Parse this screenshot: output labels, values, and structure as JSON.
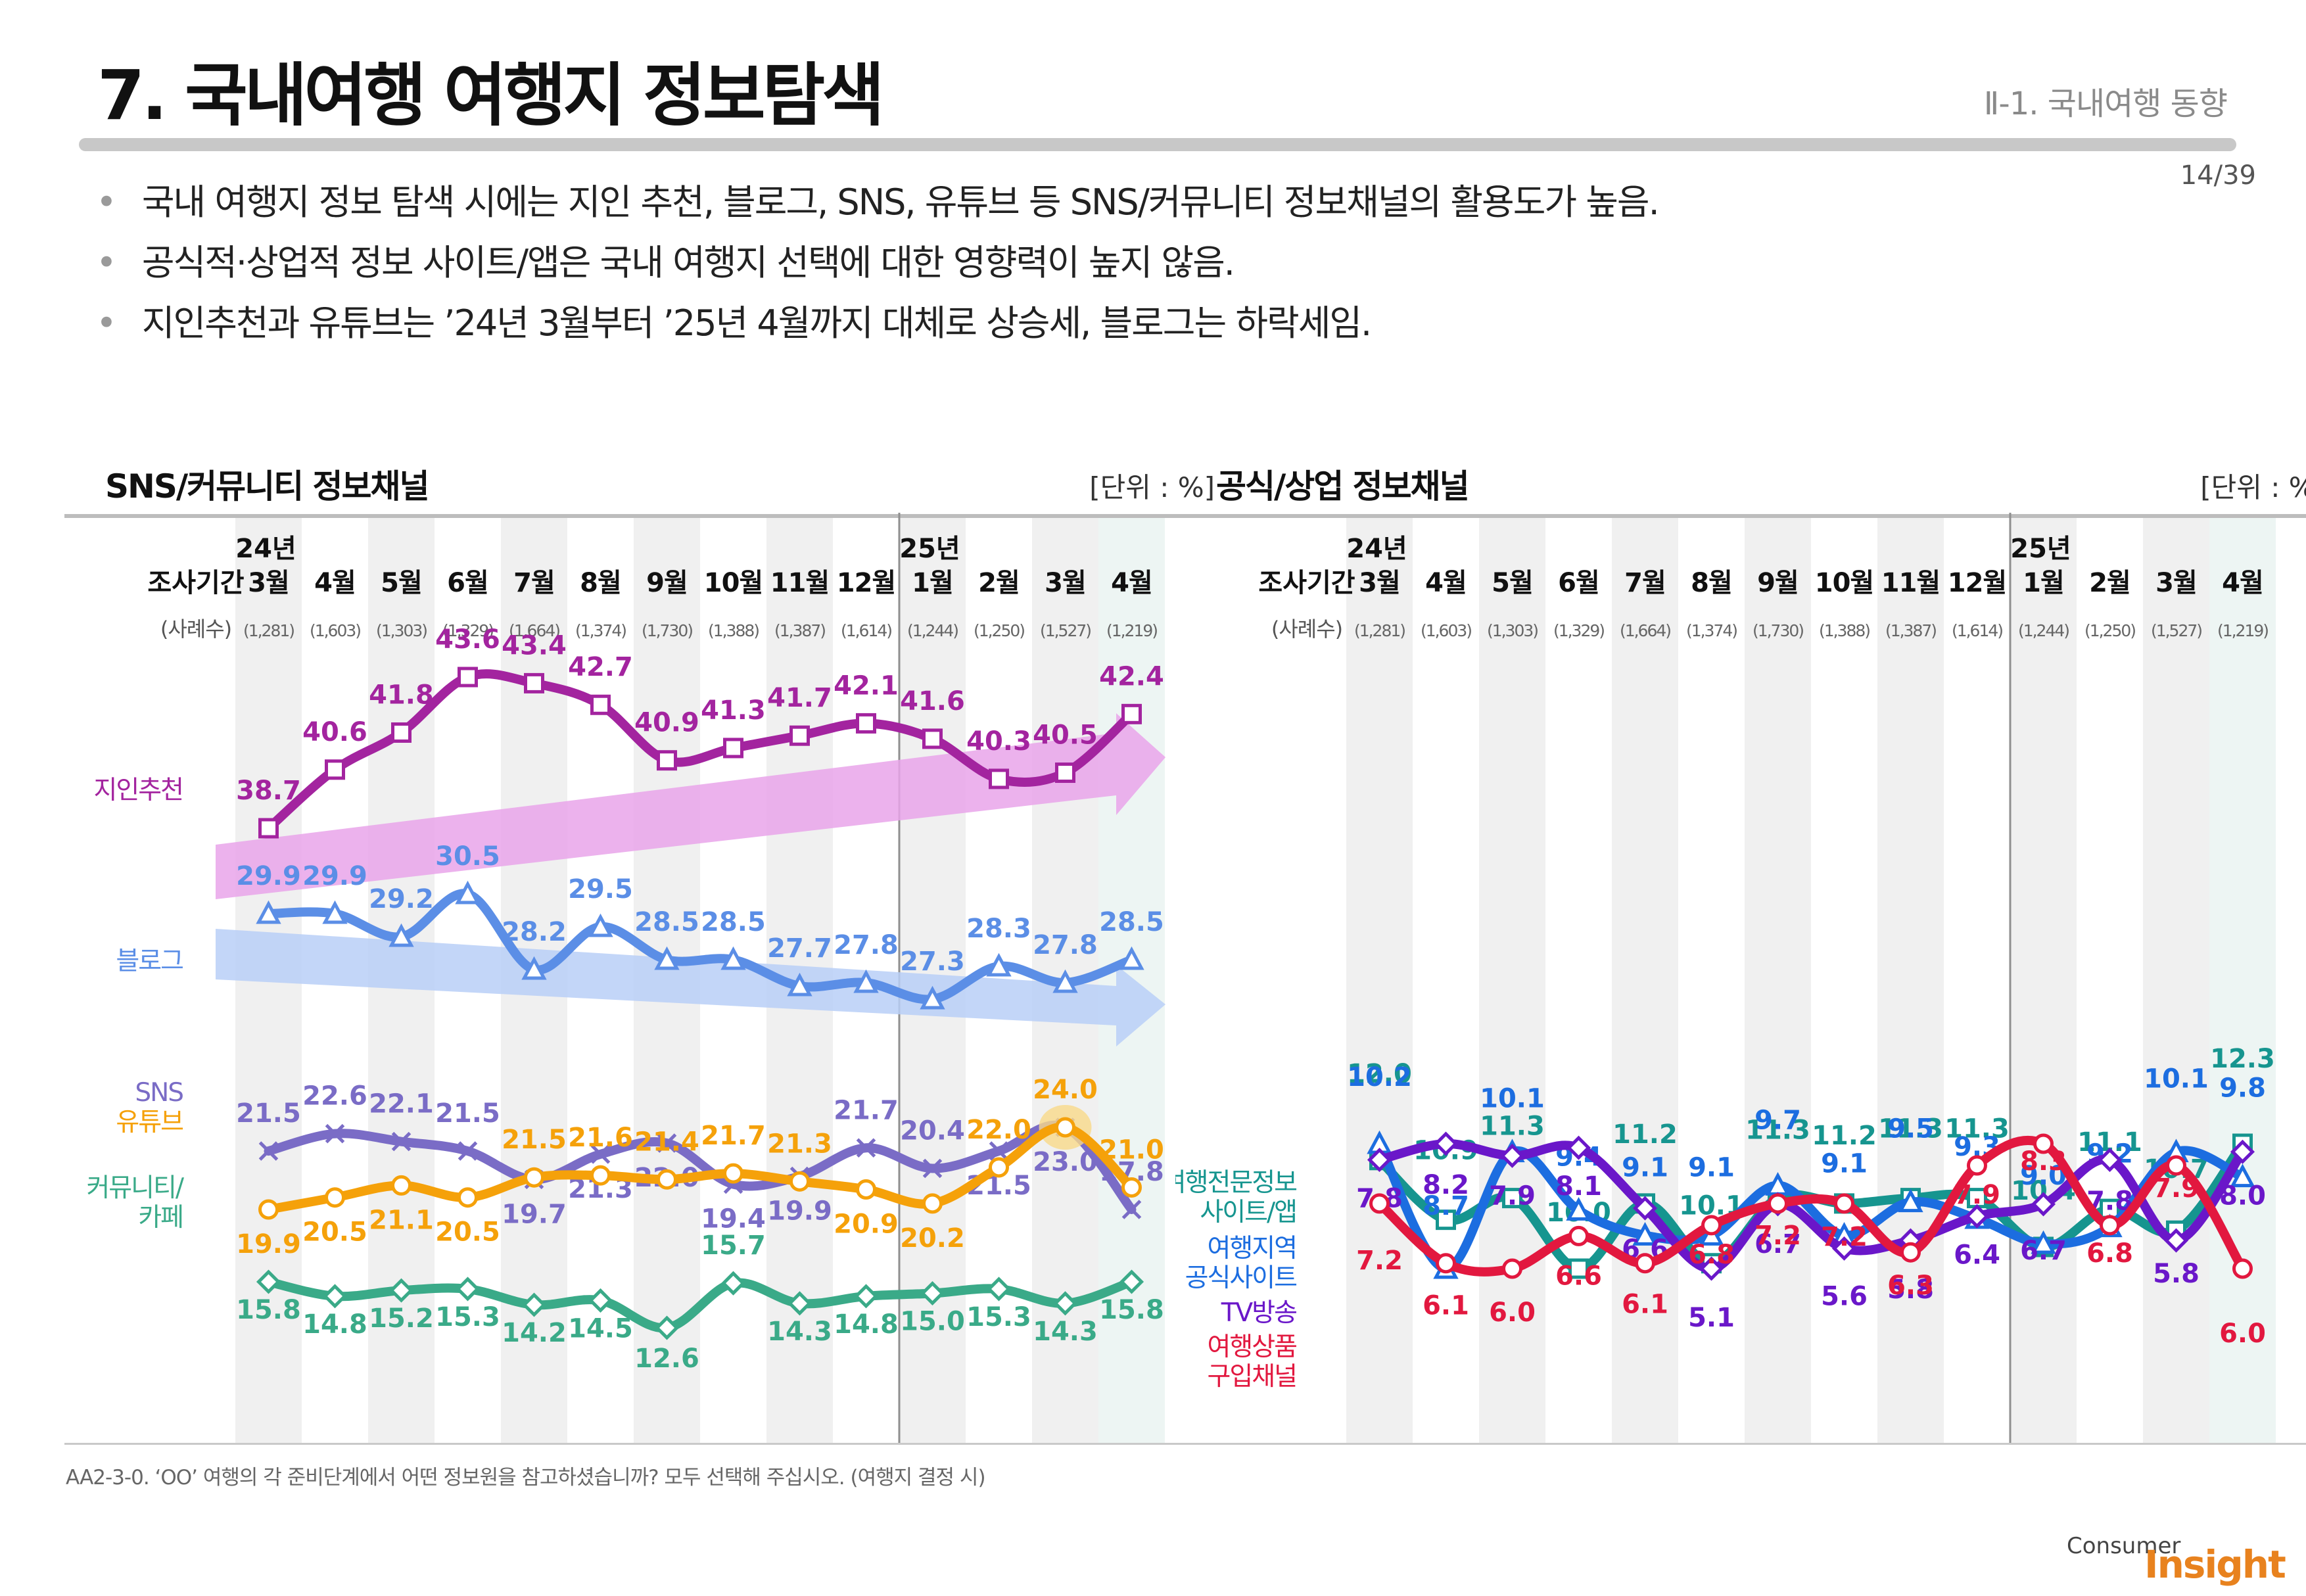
{
  "title": "7. 국내여행 여행지 정보탐색",
  "section_ref": "Ⅱ-1. 국내여행 동향",
  "page_number": "14/39",
  "bullets": [
    "국내 여행지 정보 탐색 시에는 지인 추천, 블로그, SNS, 유튜브 등 SNS/커뮤니티 정보채널의 활용도가 높음.",
    "공식적·상업적 정보 사이트/앱은 국내 여행지 선택에 대한 영향력이 높지 않음.",
    "지인추천과 유튜브는 ’24년 3월부터 ’25년 4월까지 대체로 상승세, 블로그는 하락세임."
  ],
  "bullet_marker": "•",
  "footnote": "AA2-3-0. ‘OO’ 여행의 각 준비단계에서 어떤 정보원을 참고하셨습니까? 모두 선택해 주십시오. (여행지 결정 시)",
  "logo": {
    "small": "Consumer",
    "big": "Insight"
  },
  "colors": {
    "purple": "#a3249f",
    "blue": "#5b8ee6",
    "slate": "#7a6cc6",
    "orange": "#f5a10a",
    "green": "#3aaa88",
    "teal": "#16958f",
    "royal": "#1c6de0",
    "violet": "#6a17c9",
    "red": "#e2183f"
  },
  "chart_data": [
    {
      "type": "line",
      "title": "SNS/커뮤니티 정보채널",
      "unit_label": "[단위 : %]",
      "period_label": "조사기간",
      "n_label": "(사례수)",
      "year_labels": [
        {
          "index": 0,
          "text": "24년"
        },
        {
          "index": 10,
          "text": "25년"
        }
      ],
      "categories": [
        "3월",
        "4월",
        "5월",
        "6월",
        "7월",
        "8월",
        "9월",
        "10월",
        "11월",
        "12월",
        "1월",
        "2월",
        "3월",
        "4월"
      ],
      "sample_sizes": [
        "(1,281)",
        "(1,603)",
        "(1,303)",
        "(1,329)",
        "(1,664)",
        "(1,374)",
        "(1,730)",
        "(1,388)",
        "(1,387)",
        "(1,614)",
        "(1,244)",
        "(1,250)",
        "(1,527)",
        "(1,219)"
      ],
      "ylim": [
        0,
        50
      ],
      "series": [
        {
          "name": "지인추천",
          "color": "#a3249f",
          "marker": "square",
          "trend_arrow": "up",
          "arrow_color": "#e9a5ea",
          "values": [
            38.7,
            40.6,
            41.8,
            43.6,
            43.4,
            42.7,
            40.9,
            41.3,
            41.7,
            42.1,
            41.6,
            40.3,
            40.5,
            42.4
          ]
        },
        {
          "name": "블로그",
          "color": "#5b8ee6",
          "marker": "triangle",
          "trend_arrow": "down",
          "arrow_color": "#b9cff7",
          "values": [
            29.9,
            29.9,
            29.2,
            30.5,
            28.2,
            29.5,
            28.5,
            28.5,
            27.7,
            27.8,
            27.3,
            28.3,
            27.8,
            28.5
          ]
        },
        {
          "name": "SNS",
          "color": "#7a6cc6",
          "marker": "x",
          "values": [
            21.5,
            22.6,
            22.1,
            21.5,
            19.7,
            21.3,
            22.0,
            19.4,
            19.9,
            21.7,
            20.4,
            21.5,
            23.0,
            17.8
          ]
        },
        {
          "name": "유튜브",
          "color": "#f5a10a",
          "marker": "circle",
          "highlight_index": 12,
          "values": [
            19.9,
            20.5,
            21.1,
            20.5,
            21.5,
            21.6,
            21.4,
            21.7,
            21.3,
            20.9,
            20.2,
            22.0,
            24.0,
            21.0
          ]
        },
        {
          "name": "커뮤니티/카페",
          "color": "#3aaa88",
          "marker": "diamond",
          "values": [
            15.8,
            14.8,
            15.2,
            15.3,
            14.2,
            14.5,
            12.6,
            15.7,
            14.3,
            14.8,
            15.0,
            15.3,
            14.3,
            15.8
          ]
        }
      ]
    },
    {
      "type": "line",
      "title": "공식/상업 정보채널",
      "unit_label": "[단위 : %]",
      "period_label": "조사기간",
      "n_label": "(사례수)",
      "year_labels": [
        {
          "index": 0,
          "text": "24년"
        },
        {
          "index": 10,
          "text": "25년"
        }
      ],
      "categories": [
        "3월",
        "4월",
        "5월",
        "6월",
        "7월",
        "8월",
        "9월",
        "10월",
        "11월",
        "12월",
        "1월",
        "2월",
        "3월",
        "4월"
      ],
      "sample_sizes": [
        "(1,281)",
        "(1,603)",
        "(1,303)",
        "(1,329)",
        "(1,664)",
        "(1,374)",
        "(1,730)",
        "(1,388)",
        "(1,387)",
        "(1,614)",
        "(1,244)",
        "(1,250)",
        "(1,527)",
        "(1,219)"
      ],
      "ylim": [
        0,
        50
      ],
      "series": [
        {
          "name": "여행전문정보 사이트/앱",
          "color": "#16958f",
          "marker": "square",
          "values": [
            12.0,
            10.9,
            11.3,
            10.0,
            11.2,
            10.1,
            11.3,
            11.2,
            11.3,
            11.3,
            10.4,
            11.1,
            10.7,
            12.3
          ]
        },
        {
          "name": "여행지역 공식사이트",
          "color": "#1c6de0",
          "marker": "triangle",
          "values": [
            10.2,
            8.7,
            10.1,
            9.4,
            9.1,
            9.1,
            9.7,
            9.1,
            9.5,
            9.3,
            9.0,
            9.2,
            10.1,
            9.8
          ]
        },
        {
          "name": "TV방송",
          "color": "#6a17c9",
          "marker": "diamond",
          "values": [
            7.8,
            8.2,
            7.9,
            8.1,
            6.6,
            5.1,
            6.7,
            5.6,
            5.8,
            6.4,
            6.7,
            7.8,
            5.8,
            8.0
          ]
        },
        {
          "name": "여행상품 구입채널",
          "color": "#e2183f",
          "marker": "circle",
          "values": [
            7.2,
            6.1,
            6.0,
            6.6,
            6.1,
            6.8,
            7.2,
            7.2,
            6.3,
            7.9,
            8.3,
            6.8,
            7.9,
            6.0
          ]
        }
      ]
    }
  ]
}
